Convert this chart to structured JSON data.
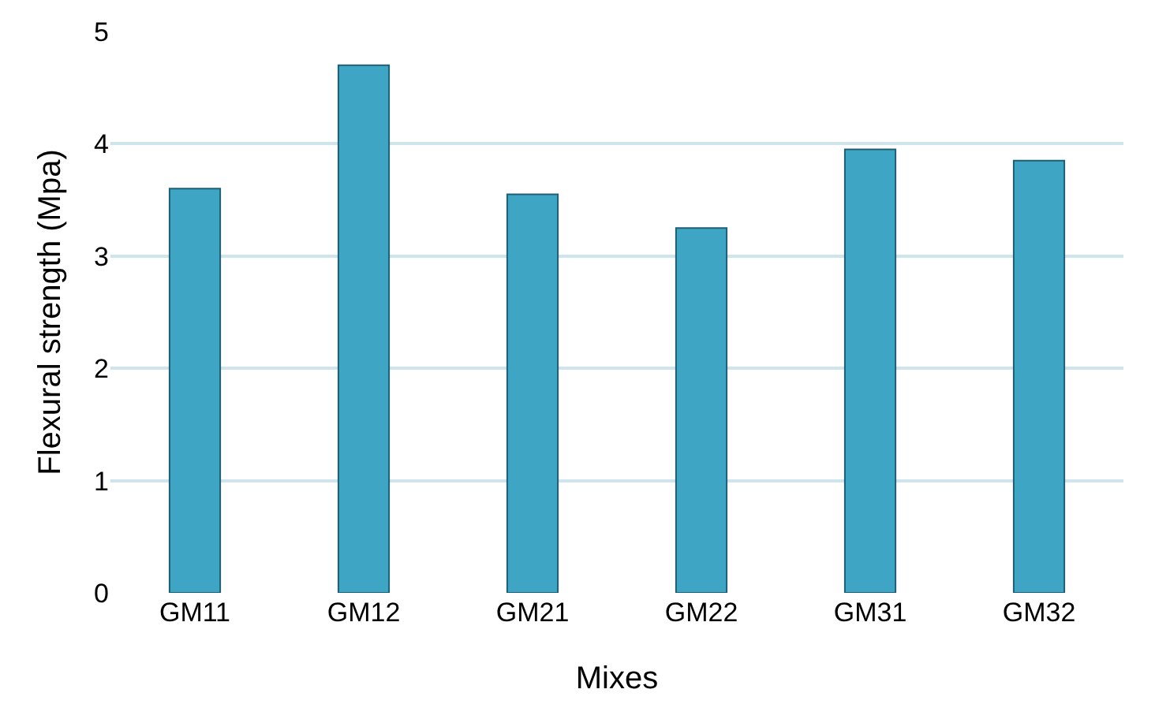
{
  "chart_data": {
    "type": "bar",
    "xlabel": "Mixes",
    "ylabel": "Flexural strength (Mpa)",
    "categories": [
      "GM11",
      "GM12",
      "GM21",
      "GM22",
      "GM31",
      "GM32"
    ],
    "values": [
      3.6,
      4.7,
      3.55,
      3.25,
      3.95,
      3.85
    ],
    "color": "#3ea6c4",
    "ylim": [
      0,
      5
    ],
    "yticks": [
      0,
      1,
      2,
      3,
      4,
      5
    ],
    "grid": "y"
  }
}
